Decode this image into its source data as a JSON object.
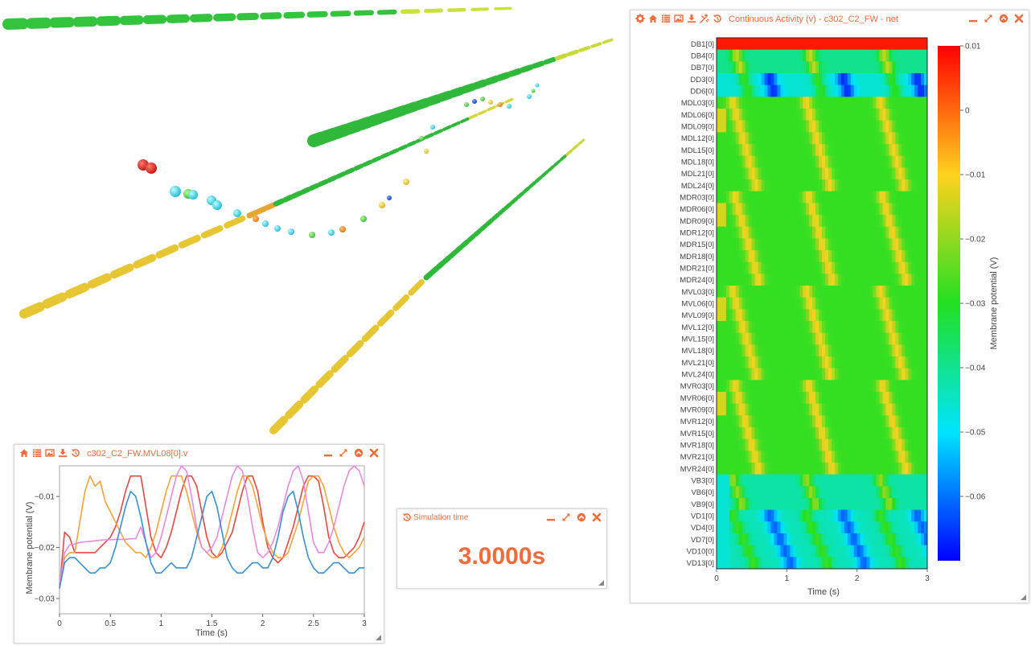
{
  "colors": {
    "accent": "#f26b3a",
    "series": [
      "#e8483f",
      "#f7a23b",
      "#e88ae0",
      "#3a8fd0"
    ]
  },
  "heatmap_panel": {
    "title": "Continuous Activity (v) - c302_C2_FW - net",
    "toolbar_icons": [
      "gear-icon",
      "home-icon",
      "list-icon",
      "image-icon",
      "download-icon",
      "exclude-icon",
      "reset-icon"
    ],
    "window_icons": [
      "minimize-icon",
      "maximize-icon",
      "collapse-icon",
      "close-icon"
    ],
    "xlabel": "Time (s)",
    "xticks": [
      "0",
      "1",
      "2",
      "3"
    ],
    "colorbar_label": "Membrane potential (V)",
    "colorbar_ticks": [
      "0.01",
      "0",
      "−0.01",
      "−0.02",
      "−0.03",
      "−0.04",
      "−0.05",
      "−0.06"
    ],
    "rows": [
      "DB1[0]",
      "DB4[0]",
      "DB7[0]",
      "DD3[0]",
      "DD6[0]",
      "MDL03[0]",
      "MDL06[0]",
      "MDL09[0]",
      "MDL12[0]",
      "MDL15[0]",
      "MDL18[0]",
      "MDL21[0]",
      "MDL24[0]",
      "MDR03[0]",
      "MDR06[0]",
      "MDR09[0]",
      "MDR12[0]",
      "MDR15[0]",
      "MDR18[0]",
      "MDR21[0]",
      "MDR24[0]",
      "MVL03[0]",
      "MVL06[0]",
      "MVL09[0]",
      "MVL12[0]",
      "MVL15[0]",
      "MVL18[0]",
      "MVL21[0]",
      "MVL24[0]",
      "MVR03[0]",
      "MVR06[0]",
      "MVR09[0]",
      "MVR12[0]",
      "MVR15[0]",
      "MVR18[0]",
      "MVR21[0]",
      "MVR24[0]",
      "VB3[0]",
      "VB6[0]",
      "VB9[0]",
      "VD1[0]",
      "VD4[0]",
      "VD7[0]",
      "VD10[0]",
      "VD13[0]"
    ]
  },
  "trace_panel": {
    "title": "c302_C2_FW.MVL08[0].v",
    "toolbar_icons": [
      "home-icon",
      "list-icon",
      "image-icon",
      "download-icon",
      "reset-icon"
    ],
    "window_icons": [
      "minimize-icon",
      "maximize-icon",
      "collapse-icon",
      "close-icon"
    ],
    "xlabel": "Time (s)",
    "ylabel": "Membrane potential (V)"
  },
  "sim_panel": {
    "title": "Simulation time",
    "value": "3.0000s",
    "window_icons": [
      "minimize-icon",
      "maximize-icon",
      "collapse-icon",
      "close-icon"
    ]
  },
  "chart_data": [
    {
      "type": "line",
      "xlabel": "Time (s)",
      "ylabel": "Membrane potential (V)",
      "xlim": [
        0,
        3
      ],
      "ylim": [
        -0.033,
        -0.004
      ],
      "xticks": [
        "0",
        "0.5",
        "1",
        "1.5",
        "2",
        "2.5",
        "3"
      ],
      "yticks": [
        "-0.01",
        "-0.02",
        "-0.03"
      ],
      "x": [
        0,
        0.05,
        0.1,
        0.15,
        0.2,
        0.25,
        0.3,
        0.35,
        0.4,
        0.45,
        0.5,
        0.55,
        0.6,
        0.65,
        0.7,
        0.75,
        0.8,
        0.85,
        0.9,
        0.95,
        1,
        1.05,
        1.1,
        1.15,
        1.2,
        1.25,
        1.3,
        1.35,
        1.4,
        1.45,
        1.5,
        1.55,
        1.6,
        1.65,
        1.7,
        1.75,
        1.8,
        1.85,
        1.9,
        1.95,
        2,
        2.05,
        2.1,
        2.15,
        2.2,
        2.25,
        2.3,
        2.35,
        2.4,
        2.45,
        2.5,
        2.55,
        2.6,
        2.65,
        2.7,
        2.75,
        2.8,
        2.85,
        2.9,
        2.95,
        3
      ],
      "grid": false,
      "series": [
        {
          "values": [
            -0.028,
            -0.017,
            -0.018,
            -0.021,
            -0.021,
            -0.021,
            -0.021,
            -0.021,
            -0.02,
            -0.019,
            -0.018,
            -0.016,
            -0.013,
            -0.009,
            -0.006,
            -0.006,
            -0.006,
            -0.012,
            -0.018,
            -0.021,
            -0.022,
            -0.02,
            -0.017,
            -0.013,
            -0.009,
            -0.006,
            -0.006,
            -0.008,
            -0.013,
            -0.018,
            -0.021,
            -0.022,
            -0.021,
            -0.019,
            -0.017,
            -0.013,
            -0.009,
            -0.006,
            -0.006,
            -0.009,
            -0.015,
            -0.02,
            -0.022,
            -0.023,
            -0.022,
            -0.019,
            -0.016,
            -0.012,
            -0.008,
            -0.006,
            -0.006,
            -0.007,
            -0.012,
            -0.018,
            -0.021,
            -0.022,
            -0.022,
            -0.021,
            -0.02,
            -0.018,
            -0.015
          ]
        },
        {
          "values": [
            -0.027,
            -0.022,
            -0.021,
            -0.021,
            -0.015,
            -0.009,
            -0.006,
            -0.008,
            -0.007,
            -0.011,
            -0.013,
            -0.015,
            -0.017,
            -0.019,
            -0.02,
            -0.021,
            -0.021,
            -0.022,
            -0.02,
            -0.017,
            -0.013,
            -0.009,
            -0.006,
            -0.006,
            -0.006,
            -0.009,
            -0.013,
            -0.017,
            -0.02,
            -0.021,
            -0.022,
            -0.022,
            -0.02,
            -0.017,
            -0.013,
            -0.009,
            -0.006,
            -0.006,
            -0.008,
            -0.012,
            -0.016,
            -0.019,
            -0.021,
            -0.022,
            -0.022,
            -0.021,
            -0.018,
            -0.015,
            -0.011,
            -0.007,
            -0.006,
            -0.006,
            -0.008,
            -0.012,
            -0.016,
            -0.019,
            -0.021,
            -0.022,
            -0.021,
            -0.02,
            -0.018
          ]
        },
        {
          "values": [
            -0.027,
            -0.021,
            -0.0195,
            -0.0193,
            -0.019,
            -0.0189,
            -0.0188,
            -0.0187,
            -0.0186,
            -0.0185,
            -0.0185,
            -0.0184,
            -0.0184,
            -0.0184,
            -0.0183,
            -0.0183,
            -0.016,
            -0.019,
            -0.022,
            -0.021,
            -0.018,
            -0.014,
            -0.01,
            -0.006,
            -0.004,
            -0.005,
            -0.01,
            -0.016,
            -0.02,
            -0.021,
            -0.02,
            -0.018,
            -0.014,
            -0.01,
            -0.006,
            -0.004,
            -0.005,
            -0.01,
            -0.016,
            -0.021,
            -0.022,
            -0.021,
            -0.019,
            -0.016,
            -0.012,
            -0.008,
            -0.005,
            -0.004,
            -0.007,
            -0.013,
            -0.019,
            -0.021,
            -0.021,
            -0.019,
            -0.016,
            -0.012,
            -0.008,
            -0.005,
            -0.004,
            -0.005,
            -0.008
          ]
        },
        {
          "values": [
            -0.028,
            -0.023,
            -0.022,
            -0.022,
            -0.023,
            -0.024,
            -0.025,
            -0.025,
            -0.024,
            -0.024,
            -0.023,
            -0.02,
            -0.016,
            -0.012,
            -0.009,
            -0.01,
            -0.014,
            -0.019,
            -0.023,
            -0.025,
            -0.025,
            -0.024,
            -0.023,
            -0.024,
            -0.024,
            -0.024,
            -0.022,
            -0.018,
            -0.014,
            -0.01,
            -0.009,
            -0.012,
            -0.017,
            -0.022,
            -0.024,
            -0.025,
            -0.025,
            -0.024,
            -0.023,
            -0.023,
            -0.024,
            -0.024,
            -0.022,
            -0.018,
            -0.013,
            -0.01,
            -0.009,
            -0.013,
            -0.018,
            -0.022,
            -0.024,
            -0.025,
            -0.025,
            -0.024,
            -0.023,
            -0.023,
            -0.024,
            -0.025,
            -0.025,
            -0.024,
            -0.024
          ]
        }
      ]
    },
    {
      "type": "heatmap",
      "xlabel": "Time (s)",
      "xlim": [
        0,
        3
      ],
      "xticks": [
        "0",
        "1",
        "2",
        "3"
      ],
      "colorbar_label": "Membrane potential (V)",
      "zlim": [
        -0.07,
        0.01
      ]
    }
  ]
}
